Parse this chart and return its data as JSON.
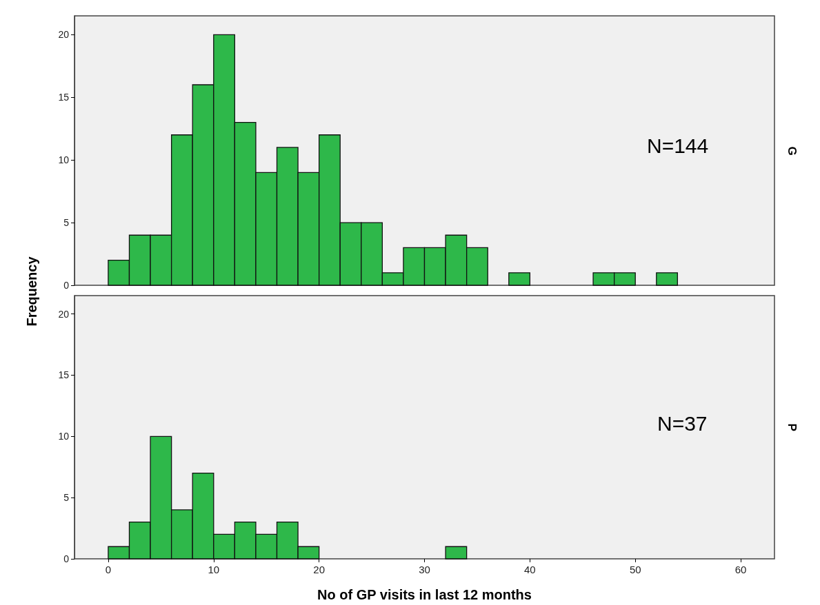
{
  "chart_data": [
    {
      "type": "histogram",
      "y2label": "G",
      "ylabel": "Frequency",
      "annotations": [
        "N=144"
      ],
      "color": "#2eb84a",
      "bins": [
        0,
        2,
        4,
        6,
        8,
        10,
        12,
        14,
        16,
        18,
        20,
        22,
        24,
        26,
        28,
        30,
        32,
        34,
        36,
        38,
        40,
        42,
        44,
        46,
        48,
        50,
        52,
        54
      ],
      "values": [
        2,
        4,
        4,
        12,
        16,
        20,
        13,
        9,
        11,
        9,
        12,
        5,
        5,
        1,
        3,
        3,
        4,
        3,
        0,
        1,
        0,
        0,
        0,
        1,
        1,
        0,
        1
      ],
      "xlim": [
        -3.2,
        63.2
      ],
      "xticks": [
        0,
        10,
        20,
        30,
        40,
        50,
        60
      ],
      "ylim": [
        0,
        21.5
      ],
      "yticks": [
        0,
        5,
        10,
        15,
        20
      ],
      "tick_labels": "y"
    },
    {
      "type": "histogram",
      "y2label": "P",
      "xlabel": "No of GP visits in last 12 months",
      "annotations": [
        "N=37"
      ],
      "color": "#2eb84a",
      "bins": [
        0,
        2,
        4,
        6,
        8,
        10,
        12,
        14,
        16,
        18,
        20,
        22,
        24,
        26,
        28,
        30,
        32,
        34
      ],
      "values": [
        1,
        3,
        10,
        4,
        7,
        2,
        3,
        2,
        3,
        1,
        0,
        0,
        0,
        0,
        0,
        0,
        1
      ],
      "xlim": [
        -3.2,
        63.2
      ],
      "xticks": [
        0,
        10,
        20,
        30,
        40,
        50,
        60
      ],
      "ylim": [
        0,
        21.5
      ],
      "yticks": [
        0,
        5,
        10,
        15,
        20
      ]
    }
  ]
}
